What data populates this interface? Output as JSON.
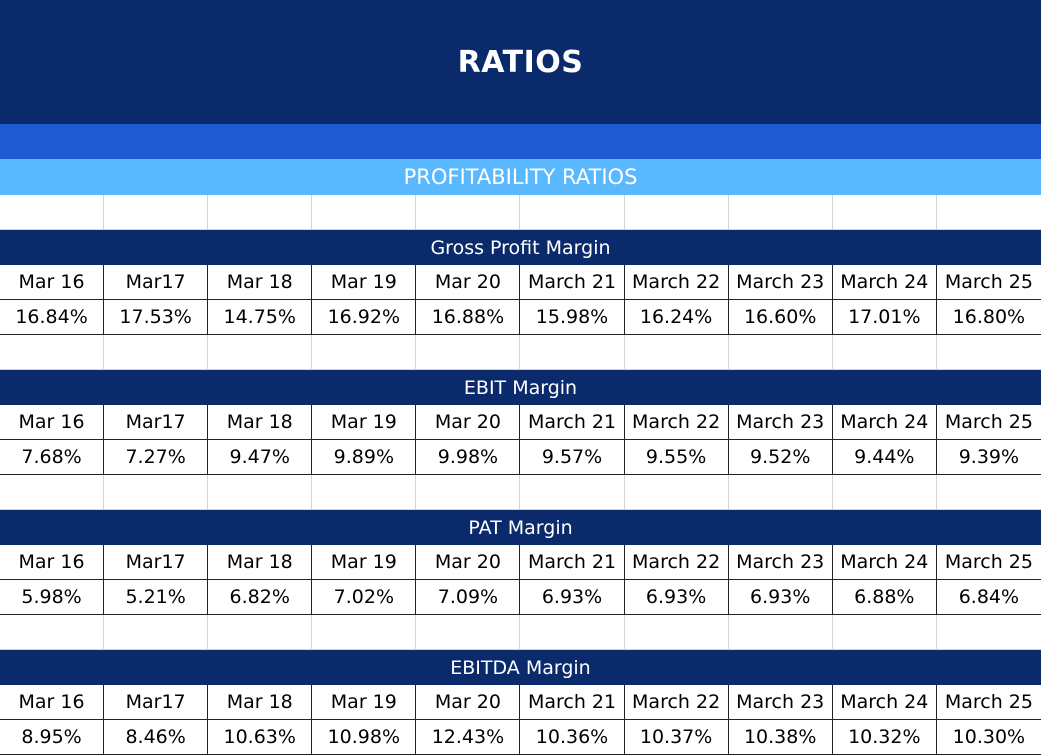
{
  "title": "RATIOS",
  "section": "PROFITABILITY RATIOS",
  "columns": [
    "Mar 16",
    "Mar17",
    "Mar 18",
    "Mar 19",
    "Mar 20",
    "March 21",
    "March 22",
    "March 23",
    "March 24",
    "March 25"
  ],
  "ratios": [
    {
      "name": "Gross Profit Margin",
      "values": [
        "16.84%",
        "17.53%",
        "14.75%",
        "16.92%",
        "16.88%",
        "15.98%",
        "16.24%",
        "16.60%",
        "17.01%",
        "16.80%"
      ]
    },
    {
      "name": "EBIT Margin",
      "values": [
        "7.68%",
        "7.27%",
        "9.47%",
        "9.89%",
        "9.98%",
        "9.57%",
        "9.55%",
        "9.52%",
        "9.44%",
        "9.39%"
      ]
    },
    {
      "name": "PAT Margin",
      "values": [
        "5.98%",
        "5.21%",
        "6.82%",
        "7.02%",
        "7.09%",
        "6.93%",
        "6.93%",
        "6.93%",
        "6.88%",
        "6.84%"
      ]
    },
    {
      "name": "EBITDA Margin",
      "values": [
        "8.95%",
        "8.46%",
        "10.63%",
        "10.98%",
        "12.43%",
        "10.36%",
        "10.37%",
        "10.38%",
        "10.32%",
        "10.30%"
      ]
    }
  ],
  "colors": {
    "header_navy": "#0a2a6c",
    "band_blue": "#1f5bd0",
    "section_light_blue": "#5ab8ff"
  }
}
